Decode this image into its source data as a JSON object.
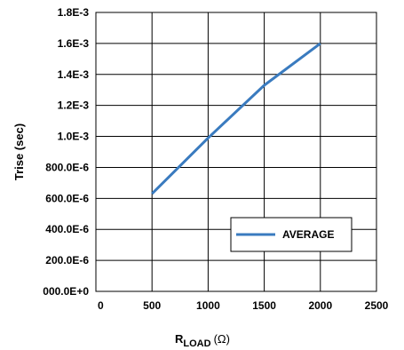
{
  "chart_data": {
    "type": "line",
    "title": "",
    "xlabel": "R",
    "xlabel_sub": "LOAD",
    "xlabel_unit": "(Ω)",
    "ylabel": "Trise (sec)",
    "xlim": [
      0,
      2500
    ],
    "ylim": [
      0,
      0.0018
    ],
    "x_ticks": [
      0,
      500,
      1000,
      1500,
      2000,
      2500
    ],
    "x_tick_labels": [
      "0",
      "500",
      "1000",
      "1500",
      "2000",
      "2500"
    ],
    "y_ticks": [
      0,
      0.0002,
      0.0004,
      0.0006,
      0.0008,
      0.001,
      0.0012,
      0.0014,
      0.0016,
      0.0018
    ],
    "y_tick_labels": [
      "000.0E+0",
      "200.0E-6",
      "400.0E-6",
      "600.0E-6",
      "800.0E-6",
      "1.0E-3",
      "1.2E-3",
      "1.4E-3",
      "1.6E-3",
      "1.8E-3"
    ],
    "grid": true,
    "legend": "bottom-right",
    "series": [
      {
        "name": "AVERAGE",
        "color": "#3a7bbf",
        "x": [
          500,
          1000,
          1500,
          2000
        ],
        "y": [
          0.00063,
          0.00099,
          0.00133,
          0.0016
        ]
      }
    ]
  }
}
